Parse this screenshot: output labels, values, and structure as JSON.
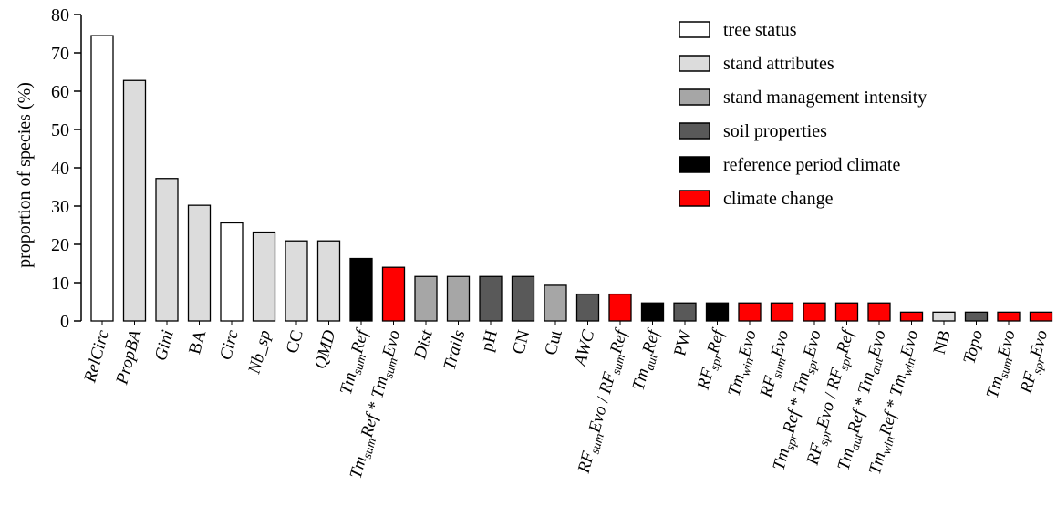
{
  "chart_data": {
    "type": "bar",
    "ylabel": "proportion of species (%)",
    "ylim": [
      0,
      80
    ],
    "yticks": [
      0,
      10,
      20,
      30,
      40,
      50,
      60,
      70,
      80
    ],
    "legend_position": "top-right",
    "groups": [
      {
        "key": "tree_status",
        "label": "tree status",
        "color": "#ffffff"
      },
      {
        "key": "stand_attributes",
        "label": "stand attributes",
        "color": "#dcdcdc"
      },
      {
        "key": "stand_management",
        "label": "stand management intensity",
        "color": "#a6a6a6"
      },
      {
        "key": "soil",
        "label": "soil properties",
        "color": "#595959"
      },
      {
        "key": "reference_climate",
        "label": "reference period climate",
        "color": "#000000"
      },
      {
        "key": "climate_change",
        "label": "climate change",
        "color": "#ff0000"
      }
    ],
    "bars": [
      {
        "label": "RelCirc",
        "italic": true,
        "value": 74.5,
        "group": "tree_status"
      },
      {
        "label": "PropBA",
        "italic": true,
        "value": 62.8,
        "group": "stand_attributes"
      },
      {
        "label": "Gini",
        "italic": true,
        "value": 37.2,
        "group": "stand_attributes"
      },
      {
        "label": "BA",
        "italic": false,
        "value": 30.2,
        "group": "stand_attributes"
      },
      {
        "label": "Circ",
        "italic": true,
        "value": 25.6,
        "group": "tree_status"
      },
      {
        "label": "Nb_sp",
        "italic": true,
        "value": 23.2,
        "group": "stand_attributes"
      },
      {
        "label": "CC",
        "italic": false,
        "value": 20.9,
        "group": "stand_attributes"
      },
      {
        "label": "QMD",
        "italic": true,
        "value": 20.9,
        "group": "stand_attributes"
      },
      {
        "label": "Tm_sum Ref",
        "parts": [
          [
            "Tm",
            ""
          ],
          [
            "sum",
            "sub"
          ],
          [
            "Ref",
            ""
          ]
        ],
        "italic": true,
        "value": 16.3,
        "group": "reference_climate"
      },
      {
        "label": "Tm_sum Ref * Tm_sum Evo",
        "parts": [
          [
            "Tm",
            ""
          ],
          [
            "sum",
            "sub"
          ],
          [
            "Ref",
            ""
          ],
          [
            " * ",
            "up"
          ],
          [
            "Tm",
            ""
          ],
          [
            "sum",
            "sub"
          ],
          [
            "Evo",
            ""
          ]
        ],
        "italic": true,
        "value": 14.0,
        "group": "climate_change"
      },
      {
        "label": "Dist",
        "italic": true,
        "value": 11.6,
        "group": "stand_management"
      },
      {
        "label": "Trails",
        "italic": true,
        "value": 11.6,
        "group": "stand_management"
      },
      {
        "label": "pH",
        "italic": false,
        "value": 11.6,
        "group": "soil"
      },
      {
        "label": "CN",
        "italic": false,
        "value": 11.6,
        "group": "soil"
      },
      {
        "label": "Cut",
        "italic": false,
        "value": 9.3,
        "group": "stand_management"
      },
      {
        "label": "AWC",
        "italic": true,
        "value": 7.0,
        "group": "soil"
      },
      {
        "label": "RF_sum Evo / RF_sum Ref",
        "parts": [
          [
            "RF",
            ""
          ],
          [
            "sum",
            "sub"
          ],
          [
            "Evo",
            ""
          ],
          [
            " / ",
            "up"
          ],
          [
            "RF",
            ""
          ],
          [
            "sum",
            "sub"
          ],
          [
            "Ref",
            ""
          ]
        ],
        "italic": true,
        "value": 7.0,
        "group": "climate_change"
      },
      {
        "label": "Tm_aut Ref",
        "parts": [
          [
            "Tm",
            ""
          ],
          [
            "aut",
            "sub"
          ],
          [
            "Ref",
            ""
          ]
        ],
        "italic": true,
        "value": 4.7,
        "group": "reference_climate"
      },
      {
        "label": "PW",
        "italic": false,
        "value": 4.7,
        "group": "soil"
      },
      {
        "label": "RF_spr Ref",
        "parts": [
          [
            "RF",
            ""
          ],
          [
            "spr",
            "sub"
          ],
          [
            "Ref",
            ""
          ]
        ],
        "italic": true,
        "value": 4.7,
        "group": "reference_climate"
      },
      {
        "label": "Tm_win Evo",
        "parts": [
          [
            "Tm",
            ""
          ],
          [
            "win",
            "sub"
          ],
          [
            "Evo",
            ""
          ]
        ],
        "italic": true,
        "value": 4.7,
        "group": "climate_change"
      },
      {
        "label": "RF_sum Evo",
        "parts": [
          [
            "RF",
            ""
          ],
          [
            "sum",
            "sub"
          ],
          [
            "Evo",
            ""
          ]
        ],
        "italic": true,
        "value": 4.7,
        "group": "climate_change"
      },
      {
        "label": "Tm_spr Ref * Tm_spr Evo",
        "parts": [
          [
            "Tm",
            ""
          ],
          [
            "spr",
            "sub"
          ],
          [
            "Ref",
            ""
          ],
          [
            " * ",
            "up"
          ],
          [
            "Tm",
            ""
          ],
          [
            "spr",
            "sub"
          ],
          [
            "Evo",
            ""
          ]
        ],
        "italic": true,
        "value": 4.7,
        "group": "climate_change"
      },
      {
        "label": "RF_spr Evo / RF_spr Ref",
        "parts": [
          [
            "RF",
            ""
          ],
          [
            "spr",
            "sub"
          ],
          [
            "Evo",
            ""
          ],
          [
            " / ",
            "up"
          ],
          [
            "RF",
            ""
          ],
          [
            "spr",
            "sub"
          ],
          [
            "Ref",
            ""
          ]
        ],
        "italic": true,
        "value": 4.7,
        "group": "climate_change"
      },
      {
        "label": "Tm_aut Ref * Tm_aut Evo",
        "parts": [
          [
            "Tm",
            ""
          ],
          [
            "aut",
            "sub"
          ],
          [
            "Ref",
            ""
          ],
          [
            " * ",
            "up"
          ],
          [
            "Tm",
            ""
          ],
          [
            "aut",
            "sub"
          ],
          [
            "Evo",
            ""
          ]
        ],
        "italic": true,
        "value": 4.7,
        "group": "climate_change"
      },
      {
        "label": "Tm_win Ref * Tm_win Evo",
        "parts": [
          [
            "Tm",
            ""
          ],
          [
            "win",
            "sub"
          ],
          [
            "Ref",
            ""
          ],
          [
            " * ",
            "up"
          ],
          [
            "Tm",
            ""
          ],
          [
            "win",
            "sub"
          ],
          [
            "Evo",
            ""
          ]
        ],
        "italic": true,
        "value": 2.3,
        "group": "climate_change"
      },
      {
        "label": "NB",
        "italic": false,
        "value": 2.3,
        "group": "stand_attributes"
      },
      {
        "label": "Topo",
        "italic": true,
        "value": 2.3,
        "group": "soil"
      },
      {
        "label": "Tm_sum Evo",
        "parts": [
          [
            "Tm",
            ""
          ],
          [
            "sum",
            "sub"
          ],
          [
            "Evo",
            ""
          ]
        ],
        "italic": true,
        "value": 2.3,
        "group": "climate_change"
      },
      {
        "label": "RF_spr Evo",
        "parts": [
          [
            "RF",
            ""
          ],
          [
            "spr",
            "sub"
          ],
          [
            "Evo",
            ""
          ]
        ],
        "italic": true,
        "value": 2.3,
        "group": "climate_change"
      }
    ]
  }
}
